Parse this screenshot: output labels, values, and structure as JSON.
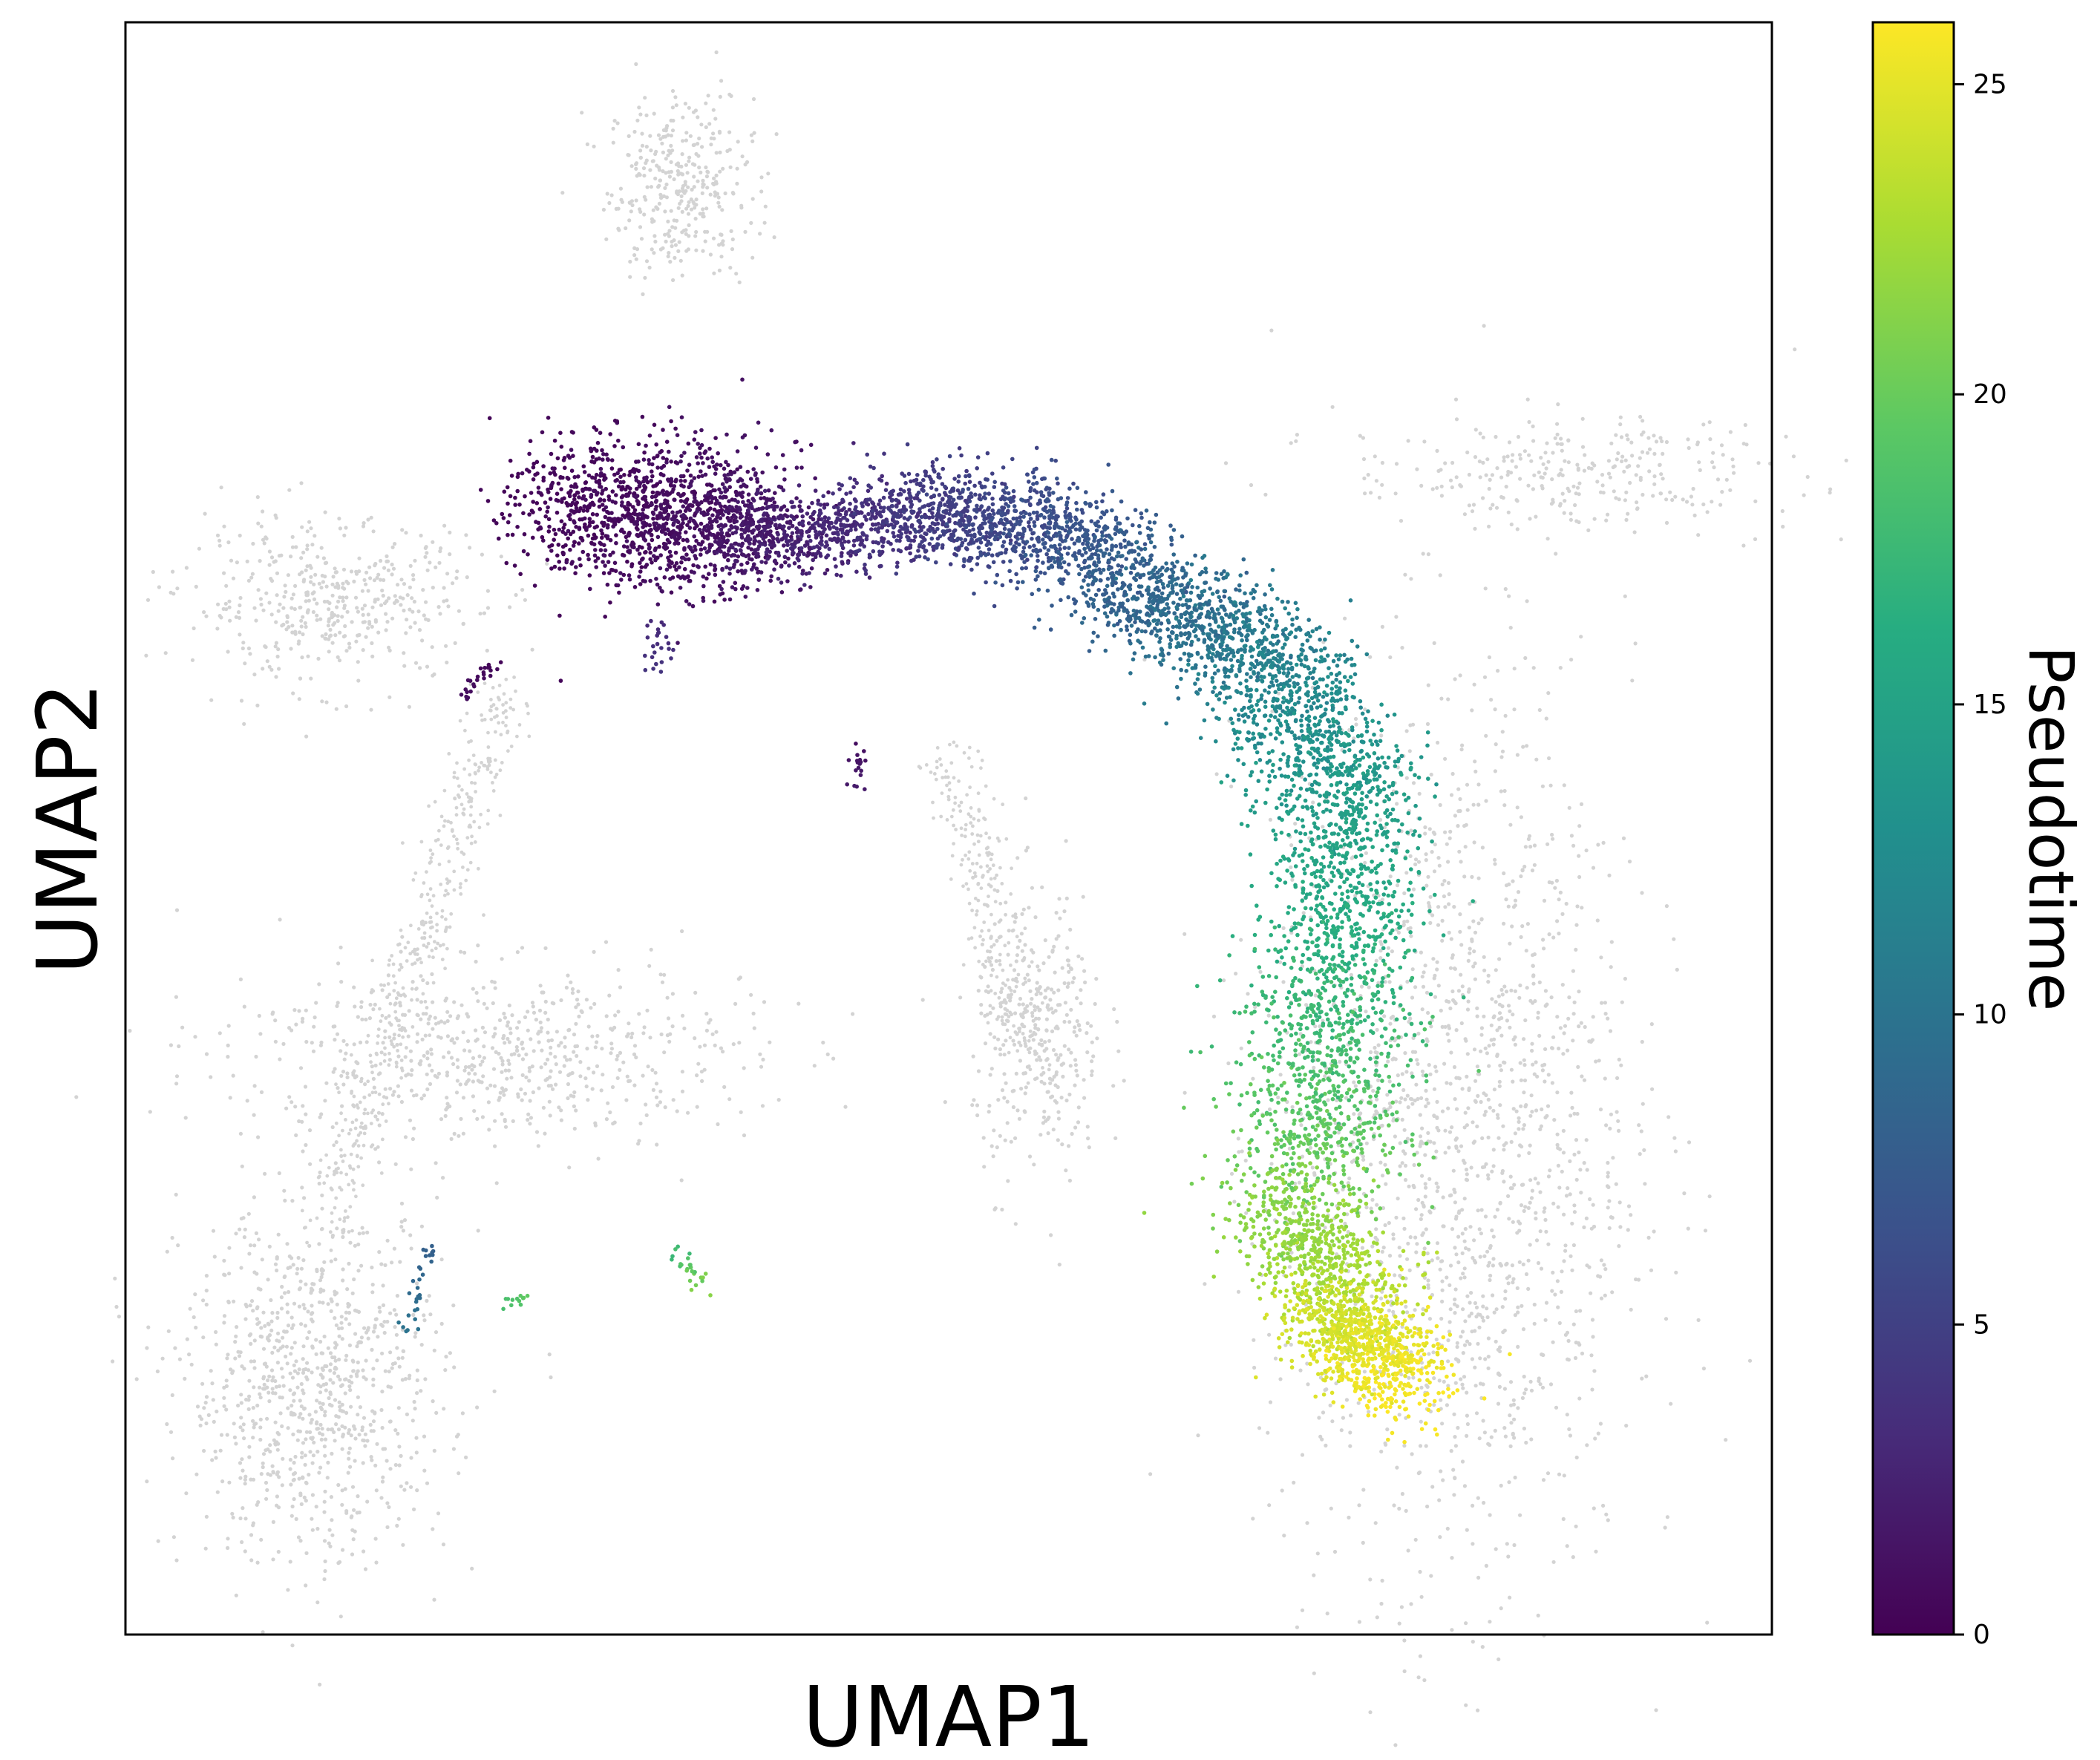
{
  "chart_data": {
    "type": "scatter",
    "title": "",
    "xlabel": "UMAP1",
    "ylabel": "UMAP2",
    "axis_ticks_shown": false,
    "grid": false,
    "colorbar": {
      "label": "Pseudotime",
      "colormap": "viridis",
      "range": [
        0,
        26
      ],
      "ticks": [
        0,
        5,
        10,
        15,
        20,
        25
      ],
      "tick_labels": [
        "0",
        "5",
        "10",
        "15",
        "20",
        "25"
      ],
      "placement": "right"
    },
    "background_point_color": "#d3d3d3",
    "xlim": [
      0,
      100
    ],
    "ylim": [
      0,
      100
    ],
    "background_clusters": [
      {
        "name": "top-small-cluster",
        "cx": 33.7,
        "cy": 89.8,
        "sx": 2.2,
        "sy": 2.8,
        "n": 350
      },
      {
        "name": "left-upper-arm",
        "cx": 12.5,
        "cy": 64.0,
        "sx": 4.5,
        "sy": 2.5,
        "n": 450
      },
      {
        "name": "left-lower-lobe",
        "cx": 11.5,
        "cy": 15.5,
        "sx": 4.0,
        "sy": 5.5,
        "n": 900
      },
      {
        "name": "left-mid-band",
        "cx": 22.0,
        "cy": 36.0,
        "sx": 8.0,
        "sy": 2.8,
        "n": 650
      },
      {
        "name": "right-tail",
        "cx": 88.0,
        "cy": 72.0,
        "sx": 7.0,
        "sy": 1.8,
        "n": 300
      },
      {
        "name": "main-right-body",
        "cx": 80.5,
        "cy": 31.0,
        "sx": 5.5,
        "sy": 14.0,
        "n": 1700
      },
      {
        "name": "mid-island",
        "cx": 55.5,
        "cy": 37.0,
        "sx": 2.0,
        "sy": 4.5,
        "n": 350
      }
    ],
    "background_paths": [
      {
        "name": "left-long-stream",
        "from": [
          23.0,
          58.0
        ],
        "to": [
          12.0,
          25.0
        ],
        "n": 450
      },
      {
        "name": "center-diagonal-stream",
        "from": [
          50.0,
          55.0
        ],
        "to": [
          55.0,
          35.0
        ],
        "n": 250
      }
    ],
    "pseudotime_segments": [
      {
        "from": [
          27.0,
          70.0
        ],
        "to": [
          38.0,
          69.0
        ],
        "pseudotime": [
          0.3,
          1.5
        ],
        "spread": 2.8,
        "n": 1300
      },
      {
        "from": [
          37.0,
          68.0
        ],
        "to": [
          47.0,
          69.0
        ],
        "pseudotime": [
          1.5,
          4.0
        ],
        "spread": 1.6,
        "n": 650
      },
      {
        "from": [
          47.0,
          70.0
        ],
        "to": [
          58.0,
          68.0
        ],
        "pseudotime": [
          4.0,
          7.0
        ],
        "spread": 1.9,
        "n": 850
      },
      {
        "from": [
          58.0,
          67.0
        ],
        "to": [
          70.0,
          60.0
        ],
        "pseudotime": [
          7.0,
          11.5
        ],
        "spread": 2.2,
        "n": 1050
      },
      {
        "from": [
          70.0,
          60.0
        ],
        "to": [
          74.0,
          52.0
        ],
        "pseudotime": [
          11.5,
          14.5
        ],
        "spread": 2.4,
        "n": 700
      },
      {
        "from": [
          74.0,
          52.0
        ],
        "to": [
          74.0,
          40.0
        ],
        "pseudotime": [
          14.5,
          17.0
        ],
        "spread": 2.2,
        "n": 650
      },
      {
        "from": [
          73.0,
          40.0
        ],
        "to": [
          72.0,
          28.0
        ],
        "pseudotime": [
          17.0,
          20.5
        ],
        "spread": 2.6,
        "n": 750
      },
      {
        "from": [
          70.0,
          27.0
        ],
        "to": [
          75.0,
          20.0
        ],
        "pseudotime": [
          21.0,
          23.5
        ],
        "spread": 2.0,
        "n": 650
      },
      {
        "from": [
          73.0,
          20.0
        ],
        "to": [
          78.0,
          15.5
        ],
        "pseudotime": [
          24.0,
          26.0
        ],
        "spread": 1.8,
        "n": 800
      },
      {
        "from": [
          22.5,
          60.5
        ],
        "to": [
          20.5,
          58.0
        ],
        "pseudotime": [
          0.5,
          1.0
        ],
        "spread": 0.3,
        "n": 25
      },
      {
        "from": [
          32.5,
          63.0
        ],
        "to": [
          32.5,
          59.5
        ],
        "pseudotime": [
          3.0,
          4.0
        ],
        "spread": 0.4,
        "n": 25
      },
      {
        "from": [
          44.5,
          55.0
        ],
        "to": [
          44.3,
          52.5
        ],
        "pseudotime": [
          1.0,
          2.0
        ],
        "spread": 0.3,
        "n": 18
      },
      {
        "from": [
          18.5,
          24.0
        ],
        "to": [
          17.0,
          19.0
        ],
        "pseudotime": [
          8.0,
          10.0
        ],
        "spread": 0.3,
        "n": 30
      },
      {
        "from": [
          33.0,
          24.0
        ],
        "to": [
          35.5,
          21.3
        ],
        "pseudotime": [
          17.0,
          22.0
        ],
        "spread": 0.4,
        "n": 25
      },
      {
        "from": [
          23.0,
          20.5
        ],
        "to": [
          24.5,
          21.0
        ],
        "pseudotime": [
          18.0,
          20.0
        ],
        "spread": 0.2,
        "n": 12
      }
    ]
  }
}
